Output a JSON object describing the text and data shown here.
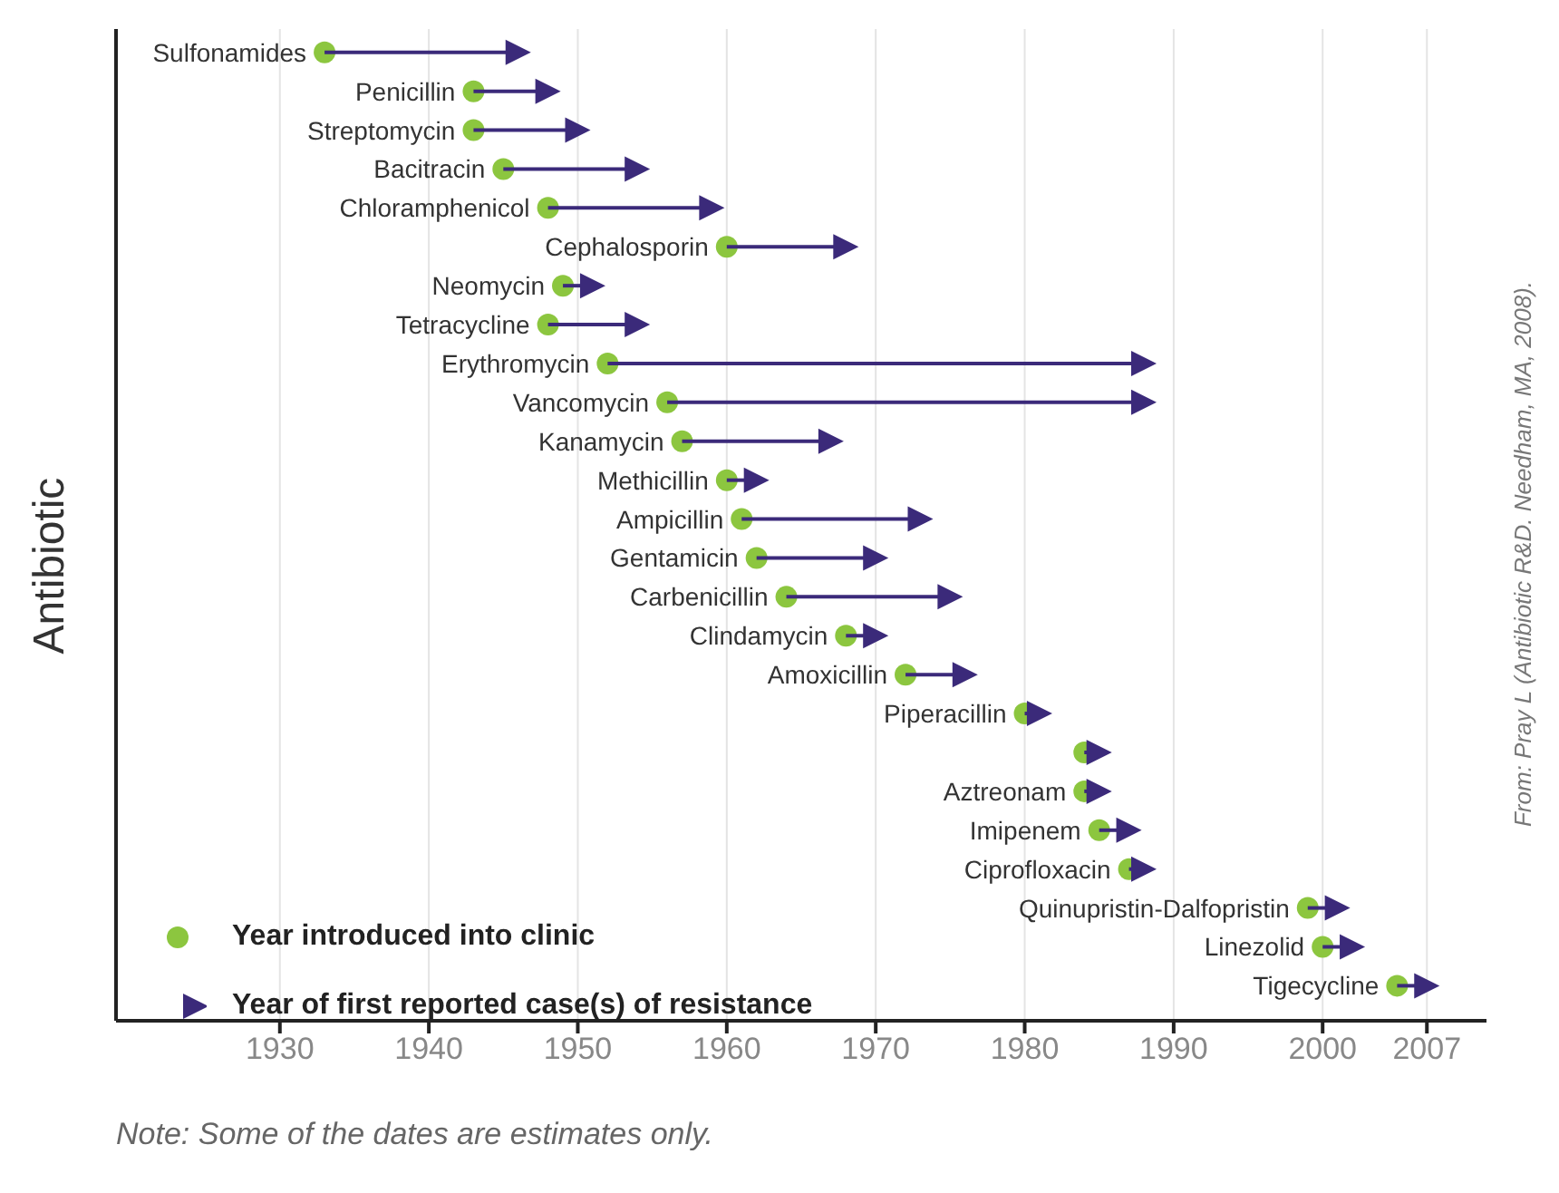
{
  "chart_data": {
    "type": "scatter",
    "orientation": "horizontal",
    "ylabel": "Antibiotic",
    "categories": [
      "Sulfonamides",
      "Penicillin",
      "Streptomycin",
      "Bacitracin",
      "Chloramphenicol",
      "Cephalosporin",
      "Neomycin",
      "Tetracycline",
      "Erythromycin",
      "Vancomycin",
      "Kanamycin",
      "Methicillin",
      "Ampicillin",
      "Gentamicin",
      "Carbenicillin",
      "Clindamycin",
      "Amoxicillin",
      "Piperacillin",
      null,
      "Aztreonam",
      "Imipenem",
      "Ciprofloxacin",
      "Quinupristin-Dalfopristin",
      "Linezolid",
      "Tigecycline"
    ],
    "series": [
      {
        "name": "Year introduced into clinic",
        "color": "#8cc63f",
        "marker": "circle",
        "values": [
          1933,
          1943,
          1943,
          1945,
          1948,
          1960,
          1949,
          1948,
          1952,
          1956,
          1957,
          1960,
          1961,
          1962,
          1964,
          1968,
          1972,
          1980,
          1984,
          1984,
          1985,
          1987,
          1999,
          2000,
          2005
        ]
      },
      {
        "name": "Year of first reported case(s) of resistance",
        "color": "#3b2a7a",
        "marker": "triangle",
        "values": [
          1946,
          1948,
          1950,
          1954,
          1959,
          1968,
          1951,
          1954,
          1988,
          1988,
          1967,
          1962,
          1973,
          1970,
          1975,
          1970,
          1976,
          1981,
          1985,
          1985,
          1987,
          1988,
          2001,
          2002,
          2007
        ]
      }
    ],
    "xlim": [
      1919,
      2011
    ],
    "xticks": [
      1930,
      1940,
      1950,
      1960,
      1970,
      1980,
      1990,
      2000,
      2007
    ],
    "grid": "x",
    "legend": "bottom left",
    "tick_labels": "x",
    "annotations": [
      "Note: Some of the dates are estimates only.",
      "From: Pray L (Antibiotic R&D. Needham, MA, 2008)."
    ]
  }
}
